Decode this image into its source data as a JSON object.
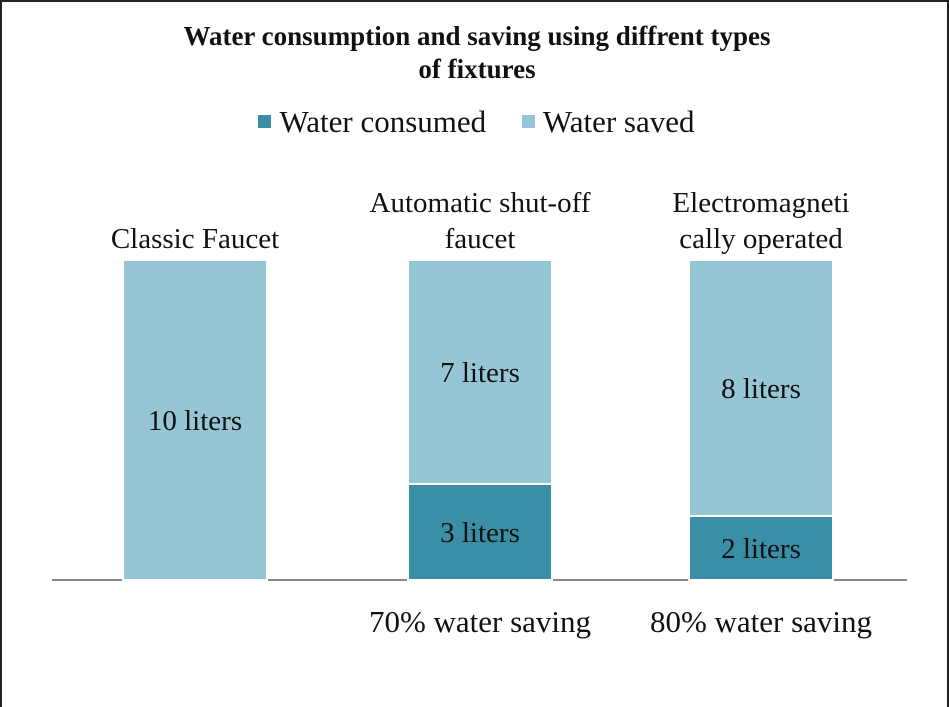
{
  "colors": {
    "consumed": "#3a8fa6",
    "saved": "#96c6d6",
    "axis": "#888888",
    "text": "#111111"
  },
  "chart_data": {
    "type": "bar",
    "stacked": true,
    "title": "Water consumption and saving using diffrent types of fixtures",
    "title_lines": [
      "Water consumption and saving using diffrent types",
      "of fixtures"
    ],
    "legend_position": "top",
    "categories": [
      "Classic Faucet",
      "Automatic shut-off faucet",
      "Electromagnetically operated"
    ],
    "category_label_lines": [
      [
        "Classic Faucet"
      ],
      [
        "Automatic shut-off",
        "faucet"
      ],
      [
        "Electromagneti",
        "cally operated"
      ]
    ],
    "series": [
      {
        "name": "Water consumed",
        "values": [
          0,
          3,
          2
        ],
        "labels": [
          "",
          "3 liters",
          "2 liters"
        ]
      },
      {
        "name": "Water saved",
        "values": [
          10,
          7,
          8
        ],
        "labels": [
          "10 liters",
          "7 liters",
          "8 liters"
        ]
      }
    ],
    "ylim": [
      0,
      10
    ],
    "grid": false,
    "bottom_labels": [
      "",
      "70% water saving",
      "80% water saving"
    ]
  }
}
